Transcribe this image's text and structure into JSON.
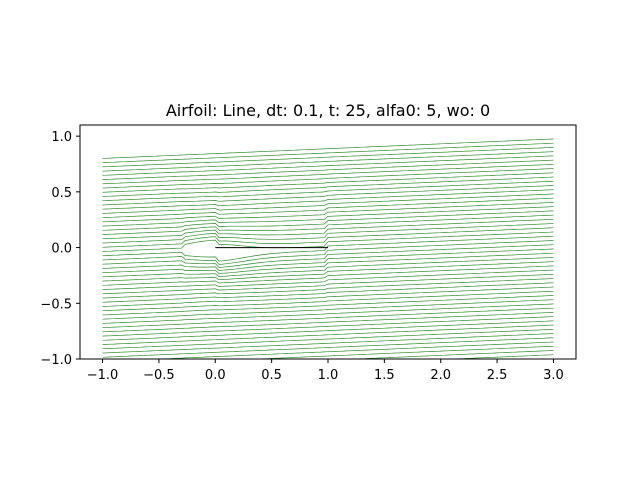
{
  "chart_data": {
    "type": "line",
    "title": "Airfoil: Line, dt: 0.1, t: 25, alfa0: 5, wo: 0",
    "xlabel": "",
    "ylabel": "",
    "xlim": [
      -1.2,
      3.2
    ],
    "ylim": [
      -1.0,
      1.1
    ],
    "xticks": [
      -1.0,
      -0.5,
      0.0,
      0.5,
      1.0,
      1.5,
      2.0,
      2.5,
      3.0
    ],
    "xtick_labels": [
      "−1.0",
      "−0.5",
      "0.0",
      "0.5",
      "1.0",
      "1.5",
      "2.0",
      "2.5",
      "3.0"
    ],
    "yticks": [
      -1.0,
      -0.5,
      0.0,
      0.5,
      1.0
    ],
    "ytick_labels": [
      "−1.0",
      "−0.5",
      "0.0",
      "0.5",
      "1.0"
    ],
    "grid": false,
    "legend": "none",
    "streamline_color": "#2e8b2e",
    "airfoil_color": "#000000",
    "airfoil": {
      "x": [
        0.0,
        1.0
      ],
      "y": [
        0.0,
        0.0
      ]
    },
    "streamlines": {
      "count": 55,
      "x_start": -1.0,
      "x_end": 3.0,
      "y_start_min": -1.25,
      "y_start_max": 0.8,
      "slope": 0.0437
    }
  }
}
